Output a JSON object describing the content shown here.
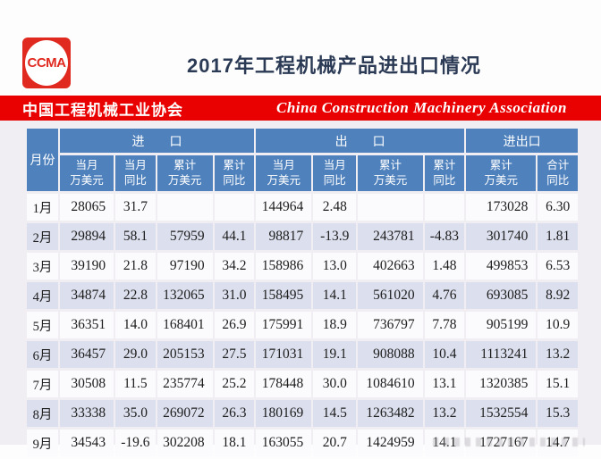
{
  "logo": {
    "text": "CCMA"
  },
  "header": {
    "title": "2017年工程机械产品进出口情况"
  },
  "banner": {
    "cn": "中国工程机械工业协会",
    "en": "China Construction Machinery Association",
    "bg_color": "#e90000"
  },
  "colors": {
    "header_blue": "#4f81bd",
    "row_alt": "#dcdfed",
    "row": "#fbfafc",
    "banner_red": "#e90000",
    "logo_red": "#e0291f",
    "title_navy": "#2b3a55"
  },
  "table": {
    "month_header": "月份",
    "groups": [
      {
        "label": "进　　口"
      },
      {
        "label": "出　　口"
      },
      {
        "label": "进出口"
      }
    ],
    "subheaders": [
      "当月\n万美元",
      "当月\n同比",
      "累计\n万美元",
      "累计\n同比",
      "当月\n万美元",
      "当月\n同比",
      "累计\n万美元",
      "累计\n同比",
      "累计\n万美元",
      "合计\n同比"
    ],
    "rows": [
      {
        "month": "1月",
        "cells": [
          "28065",
          "31.7",
          "",
          "",
          "144964",
          "2.48",
          "",
          "",
          "173028",
          "6.30"
        ]
      },
      {
        "month": "2月",
        "cells": [
          "29894",
          "58.1",
          "57959",
          "44.1",
          "98817",
          "-13.9",
          "243781",
          "-4.83",
          "301740",
          "1.81"
        ]
      },
      {
        "month": "3月",
        "cells": [
          "39190",
          "21.8",
          "97190",
          "34.2",
          "158986",
          "13.0",
          "402663",
          "1.48",
          "499853",
          "6.53"
        ]
      },
      {
        "month": "4月",
        "cells": [
          "34874",
          "22.8",
          "132065",
          "31.0",
          "158495",
          "14.1",
          "561020",
          "4.76",
          "693085",
          "8.92"
        ]
      },
      {
        "month": "5月",
        "cells": [
          "36351",
          "14.0",
          "168401",
          "26.9",
          "175991",
          "18.9",
          "736797",
          "7.78",
          "905199",
          "10.9"
        ]
      },
      {
        "month": "6月",
        "cells": [
          "36457",
          "29.0",
          "205153",
          "27.5",
          "171031",
          "19.1",
          "908088",
          "10.4",
          "1113241",
          "13.2"
        ]
      },
      {
        "month": "7月",
        "cells": [
          "30508",
          "11.5",
          "235774",
          "25.2",
          "178448",
          "30.0",
          "1084610",
          "13.1",
          "1320385",
          "15.1"
        ]
      },
      {
        "month": "8月",
        "cells": [
          "33338",
          "35.0",
          "269072",
          "26.3",
          "180169",
          "14.5",
          "1263482",
          "13.2",
          "1532554",
          "15.3"
        ]
      },
      {
        "month": "9月",
        "cells": [
          "34543",
          "-19.6",
          "302208",
          "18.1",
          "163055",
          "20.7",
          "1424959",
          "14.1",
          "1727167",
          "14.7"
        ]
      }
    ]
  },
  "chart_data": {
    "type": "table",
    "title": "2017年工程机械产品进出口情况",
    "source": "中国工程机械工业协会 / China Construction Machinery Association",
    "column_groups": [
      "进口",
      "出口",
      "进出口"
    ],
    "columns": [
      "月份",
      "进口当月万美元",
      "进口当月同比",
      "进口累计万美元",
      "进口累计同比",
      "出口当月万美元",
      "出口当月同比",
      "出口累计万美元",
      "出口累计同比",
      "进出口累计万美元",
      "进出口合计同比"
    ],
    "rows": [
      [
        "1月",
        28065,
        31.7,
        null,
        null,
        144964,
        2.48,
        null,
        null,
        173028,
        6.3
      ],
      [
        "2月",
        29894,
        58.1,
        57959,
        44.1,
        98817,
        -13.9,
        243781,
        -4.83,
        301740,
        1.81
      ],
      [
        "3月",
        39190,
        21.8,
        97190,
        34.2,
        158986,
        13.0,
        402663,
        1.48,
        499853,
        6.53
      ],
      [
        "4月",
        34874,
        22.8,
        132065,
        31.0,
        158495,
        14.1,
        561020,
        4.76,
        693085,
        8.92
      ],
      [
        "5月",
        36351,
        14.0,
        168401,
        26.9,
        175991,
        18.9,
        736797,
        7.78,
        905199,
        10.9
      ],
      [
        "6月",
        36457,
        29.0,
        205153,
        27.5,
        171031,
        19.1,
        908088,
        10.4,
        1113241,
        13.2
      ],
      [
        "7月",
        30508,
        11.5,
        235774,
        25.2,
        178448,
        30.0,
        1084610,
        13.1,
        1320385,
        15.1
      ],
      [
        "8月",
        33338,
        35.0,
        269072,
        26.3,
        180169,
        14.5,
        1263482,
        13.2,
        1532554,
        15.3
      ],
      [
        "9月",
        34543,
        -19.6,
        302208,
        18.1,
        163055,
        20.7,
        1424959,
        14.1,
        1727167,
        14.7
      ]
    ]
  }
}
